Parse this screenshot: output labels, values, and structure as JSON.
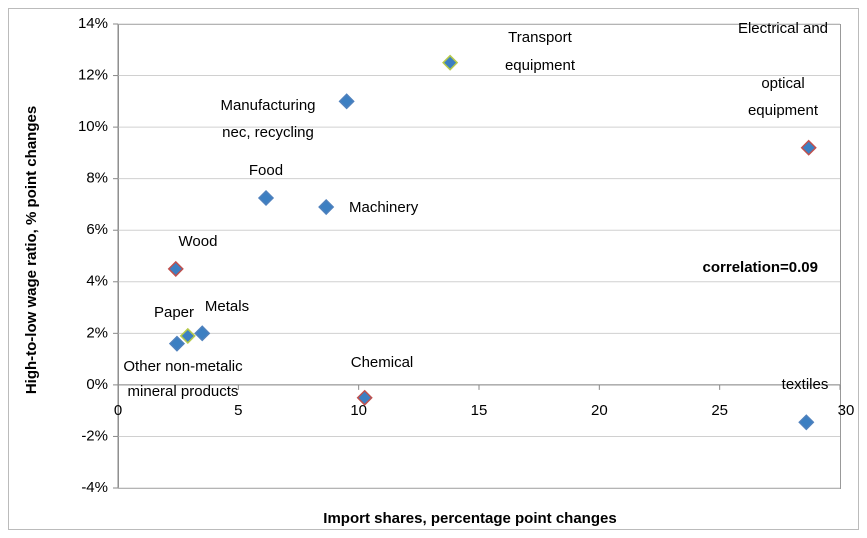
{
  "chart_data": {
    "type": "scatter",
    "x_label": "Import shares, percentage point changes",
    "y_label": "High-to-low wage ratio, % point changes",
    "annotation": "correlation=0.09",
    "x": [
      13.8,
      28.7,
      9.5,
      6.15,
      8.65,
      2.4,
      3.5,
      2.9,
      2.45,
      10.25,
      28.6
    ],
    "values": [
      12.5,
      9.2,
      11.0,
      7.25,
      6.9,
      4.5,
      2.0,
      1.9,
      1.6,
      -0.5,
      -1.45
    ],
    "point_labels": [
      [
        "Transport",
        "equipment"
      ],
      [
        "Electrical and",
        "optical",
        "equipment"
      ],
      [
        "Manufacturing",
        "nec, recycling"
      ],
      [
        "Food"
      ],
      [
        "Machinery"
      ],
      [
        "Wood"
      ],
      [
        "Metals"
      ],
      [
        "Paper"
      ],
      [
        "Other non-metalic",
        "mineral products"
      ],
      [
        "Chemical"
      ],
      [
        "textiles"
      ]
    ],
    "color": "#3c7fc2",
    "edge_colors": [
      "#b5c94a",
      "#c0504d",
      "#4f81bd",
      "#4f81bd",
      "#4f81bd",
      "#c0504d",
      "#4f81bd",
      "#b5c94a",
      "#4f81bd",
      "#c0504d",
      "#4f81bd"
    ],
    "xlim": [
      0,
      30
    ],
    "xticks": [
      0,
      5,
      10,
      15,
      20,
      25,
      30
    ],
    "ylim": [
      -4,
      14
    ],
    "yticks": [
      {
        "value": -4,
        "label": "-4%"
      },
      {
        "value": -2,
        "label": "-2%"
      },
      {
        "value": 0,
        "label": "0%"
      },
      {
        "value": 2,
        "label": "2%"
      },
      {
        "value": 4,
        "label": "4%"
      },
      {
        "value": 6,
        "label": "6%"
      },
      {
        "value": 8,
        "label": "8%"
      },
      {
        "value": 10,
        "label": "10%"
      },
      {
        "value": 12,
        "label": "12%"
      },
      {
        "value": 14,
        "label": "14%"
      }
    ],
    "grid": true
  }
}
